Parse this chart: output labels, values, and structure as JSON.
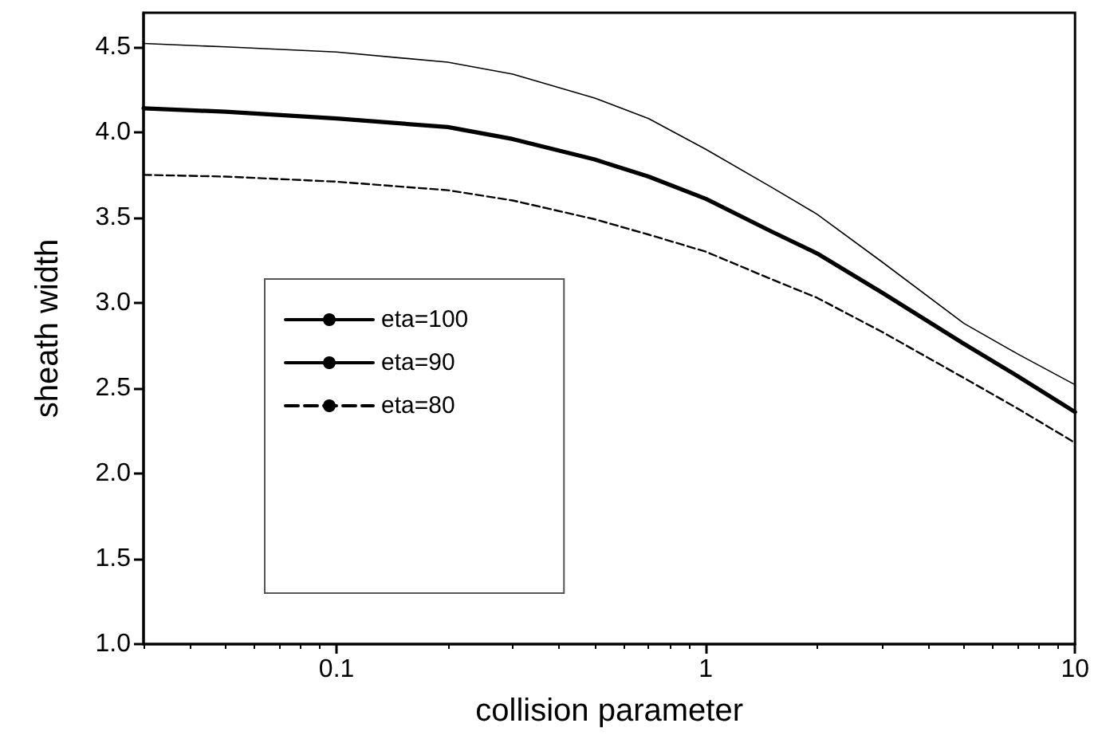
{
  "chart_data": {
    "type": "line",
    "xlabel": "collision parameter",
    "ylabel": "sheath width",
    "log": "x",
    "xlim": [
      0.03,
      10
    ],
    "xticks": [
      0.1,
      1,
      10
    ],
    "ylim": [
      1,
      4.7
    ],
    "yticks": [
      {
        "value": 1,
        "label": "1.0"
      },
      {
        "value": 1.5,
        "label": "1.5"
      },
      {
        "value": 2,
        "label": "2.0"
      },
      {
        "value": 2.5,
        "label": "2.5"
      },
      {
        "value": 3,
        "label": "3.0"
      },
      {
        "value": 3.5,
        "label": "3.5"
      },
      {
        "value": 4,
        "label": "4.0"
      },
      {
        "value": 4.5,
        "label": "4.5"
      }
    ],
    "grid": false,
    "legend": "left",
    "marker": "none",
    "x": [
      0.03,
      0.05,
      0.1,
      0.2,
      0.3,
      0.5,
      0.7,
      1,
      1.5,
      2,
      3,
      5,
      7,
      10
    ],
    "series": [
      {
        "name": "eta=100",
        "color": "#000000",
        "line_style": "solid",
        "values": [
          4.52,
          4.5,
          4.47,
          4.41,
          4.34,
          4.2,
          4.08,
          3.9,
          3.68,
          3.52,
          3.24,
          2.88,
          2.7,
          2.52
        ]
      },
      {
        "name": "eta=90",
        "color": "#000000",
        "line_style": "solid",
        "values": [
          4.14,
          4.12,
          4.08,
          4.03,
          3.96,
          3.84,
          3.74,
          3.61,
          3.42,
          3.29,
          3.06,
          2.76,
          2.57,
          2.36
        ]
      },
      {
        "name": "eta=80",
        "color": "#000000",
        "line_style": "dashed",
        "values": [
          3.75,
          3.74,
          3.71,
          3.66,
          3.6,
          3.49,
          3.4,
          3.3,
          3.14,
          3.03,
          2.83,
          2.56,
          2.38,
          2.18
        ]
      }
    ]
  }
}
